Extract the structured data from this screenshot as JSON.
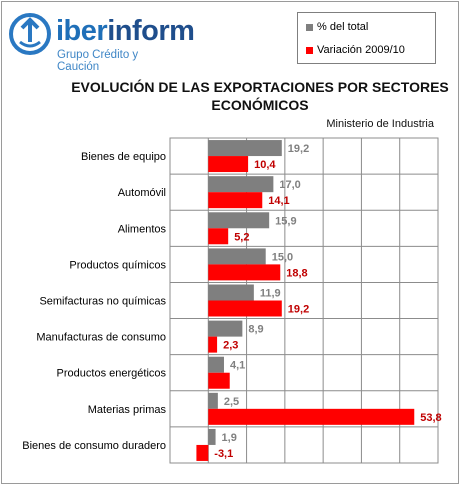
{
  "logo": {
    "word_part1": "iber",
    "word_part2": "inform",
    "subtitle": "Grupo Crédito y Caución"
  },
  "legend": [
    {
      "label": "% del total",
      "color": "#7f7f7f"
    },
    {
      "label": "Variación 2009/10",
      "color": "#ff0000"
    }
  ],
  "chart_data": {
    "type": "bar",
    "orientation": "horizontal",
    "title_line1": "EVOLUCIÓN DE LAS EXPORTACIONES POR SECTORES",
    "title_line2": "ECONÓMICOS",
    "subtitle": "Ministerio de Industria",
    "categories": [
      "Bienes de equipo",
      "Automóvil",
      "Alimentos",
      "Productos químicos",
      "Semifacturas no químicas",
      "Manufacturas de consumo",
      "Productos energéticos",
      "Materias primas",
      "Bienes de consumo duradero"
    ],
    "series": [
      {
        "name": "% del total",
        "color": "#7f7f7f",
        "values": [
          19.2,
          17.0,
          15.9,
          15.0,
          11.9,
          8.9,
          4.1,
          2.5,
          1.9
        ],
        "labels": [
          "19,2",
          "17,0",
          "15,9",
          "15,0",
          "11,9",
          "8,9",
          "4,1",
          "2,5",
          "1,9"
        ]
      },
      {
        "name": "Variación 2009/10",
        "color": "#ff0000",
        "values": [
          10.4,
          14.1,
          5.2,
          18.8,
          19.2,
          2.3,
          5.6,
          53.8,
          -3.1
        ],
        "labels": [
          "10,4",
          "14,1",
          "5,2",
          "18,8",
          "19,2",
          "2,3",
          "",
          "53,8",
          "-3,1"
        ]
      }
    ],
    "xlim": [
      -10,
      60
    ],
    "grid": true,
    "legend_position": "top-right"
  }
}
